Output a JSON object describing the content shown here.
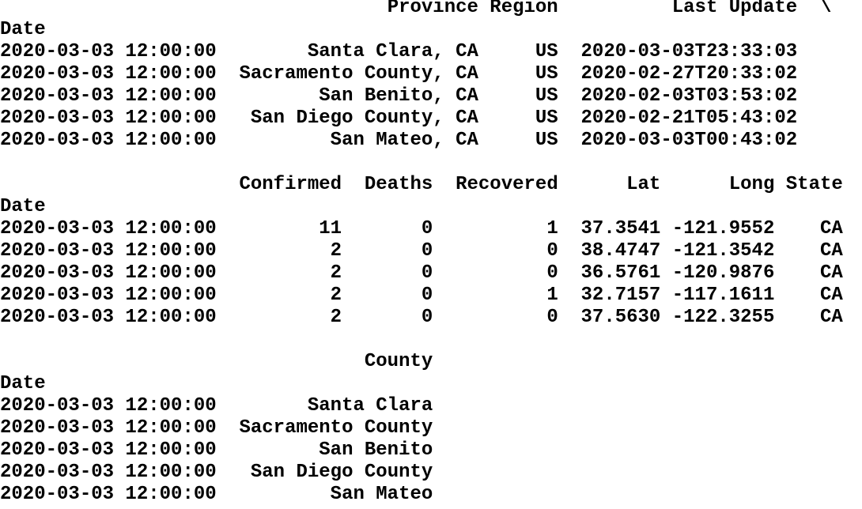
{
  "blocks": [
    {
      "columns": [
        "Province",
        "Region",
        "Last Update"
      ],
      "continuation": "\\",
      "index_name": "Date",
      "rows": [
        {
          "index": "2020-03-03 12:00:00",
          "cells": [
            "Santa Clara, CA",
            "US",
            "2020-03-03T23:33:03"
          ]
        },
        {
          "index": "2020-03-03 12:00:00",
          "cells": [
            "Sacramento County, CA",
            "US",
            "2020-02-27T20:33:02"
          ]
        },
        {
          "index": "2020-03-03 12:00:00",
          "cells": [
            "San Benito, CA",
            "US",
            "2020-02-03T03:53:02"
          ]
        },
        {
          "index": "2020-03-03 12:00:00",
          "cells": [
            "San Diego County, CA",
            "US",
            "2020-02-21T05:43:02"
          ]
        },
        {
          "index": "2020-03-03 12:00:00",
          "cells": [
            "San Mateo, CA",
            "US",
            "2020-03-03T00:43:02"
          ]
        }
      ]
    },
    {
      "columns": [
        "Confirmed",
        "Deaths",
        "Recovered",
        "Lat",
        "Long",
        "State"
      ],
      "index_name": "Date",
      "rows": [
        {
          "index": "2020-03-03 12:00:00",
          "cells": [
            "11",
            "0",
            "1",
            "37.3541",
            "-121.9552",
            "CA"
          ]
        },
        {
          "index": "2020-03-03 12:00:00",
          "cells": [
            "2",
            "0",
            "0",
            "38.4747",
            "-121.3542",
            "CA"
          ]
        },
        {
          "index": "2020-03-03 12:00:00",
          "cells": [
            "2",
            "0",
            "0",
            "36.5761",
            "-120.9876",
            "CA"
          ]
        },
        {
          "index": "2020-03-03 12:00:00",
          "cells": [
            "2",
            "0",
            "1",
            "32.7157",
            "-117.1611",
            "CA"
          ]
        },
        {
          "index": "2020-03-03 12:00:00",
          "cells": [
            "2",
            "0",
            "0",
            "37.5630",
            "-122.3255",
            "CA"
          ]
        }
      ]
    },
    {
      "columns": [
        "County"
      ],
      "index_name": "Date",
      "rows": [
        {
          "index": "2020-03-03 12:00:00",
          "cells": [
            "Santa Clara"
          ]
        },
        {
          "index": "2020-03-03 12:00:00",
          "cells": [
            "Sacramento County"
          ]
        },
        {
          "index": "2020-03-03 12:00:00",
          "cells": [
            "San Benito"
          ]
        },
        {
          "index": "2020-03-03 12:00:00",
          "cells": [
            "San Diego County"
          ]
        },
        {
          "index": "2020-03-03 12:00:00",
          "cells": [
            "San Mateo"
          ]
        }
      ]
    }
  ]
}
